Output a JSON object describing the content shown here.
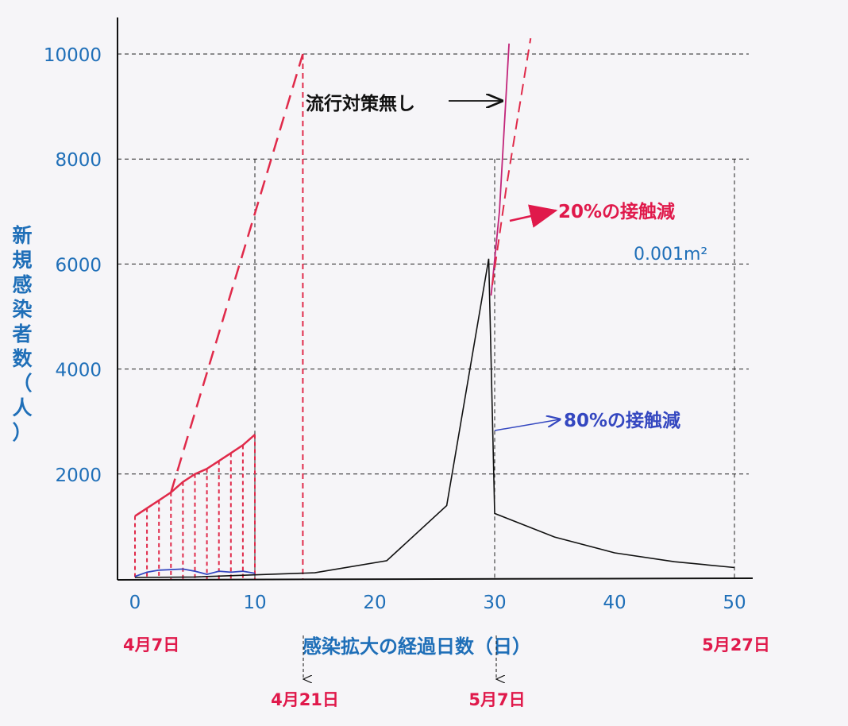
{
  "colors": {
    "blue_text": "#1f6fb8",
    "red_text": "#e0194b",
    "series_black": "#111111",
    "series_magenta": "#c2257a",
    "series_red": "#e02a4a",
    "series_blue": "#3447c0",
    "grid": "#222222",
    "background": "#f6f5f8"
  },
  "chart_data": {
    "type": "line",
    "title": "",
    "xlabel": "感染拡大の経過日数（日）",
    "ylabel": "新規感染者数（人）",
    "xlim": [
      0,
      52
    ],
    "ylim": [
      0,
      10000
    ],
    "grid": true,
    "x_ticks": [
      "0",
      "10",
      "20",
      "30",
      "40",
      "50"
    ],
    "y_ticks": [
      "2000",
      "4000",
      "6000",
      "8000",
      "10000"
    ],
    "date_labels": [
      {
        "day": 0,
        "label": "4月7日"
      },
      {
        "day": 14,
        "label": "4月21日"
      },
      {
        "day": 30,
        "label": "5月7日"
      },
      {
        "day": 50,
        "label": "5月27日"
      }
    ],
    "series": [
      {
        "style": "solid",
        "points": [
          [
            0,
            30
          ],
          [
            5,
            40
          ],
          [
            10,
            80
          ],
          [
            15,
            120
          ],
          [
            21,
            350
          ],
          [
            26,
            1400
          ],
          [
            29.5,
            6100
          ],
          [
            30,
            1250
          ],
          [
            35,
            800
          ],
          [
            40,
            500
          ],
          [
            45,
            330
          ],
          [
            50,
            220
          ]
        ]
      },
      {
        "style": "solid",
        "points": [
          [
            29.7,
            5400
          ],
          [
            30.4,
            7000
          ],
          [
            31.2,
            10200
          ]
        ]
      },
      {
        "style": "dashed",
        "points": [
          [
            29.8,
            5600
          ],
          [
            31,
            7500
          ],
          [
            33,
            10300
          ]
        ]
      },
      {
        "style": "dashed",
        "points": [
          [
            3,
            1650
          ],
          [
            14,
            10000
          ]
        ]
      },
      {
        "style": "solid",
        "points": [
          [
            0,
            1200
          ],
          [
            1,
            1350
          ],
          [
            2,
            1500
          ],
          [
            3,
            1650
          ],
          [
            4,
            1850
          ],
          [
            5,
            2000
          ],
          [
            6,
            2100
          ],
          [
            7,
            2250
          ],
          [
            8,
            2400
          ],
          [
            9,
            2550
          ],
          [
            10,
            2750
          ]
        ]
      },
      {
        "style": "solid",
        "points": [
          [
            0,
            50
          ],
          [
            1,
            130
          ],
          [
            2,
            170
          ],
          [
            3,
            180
          ],
          [
            4,
            190
          ],
          [
            5,
            150
          ],
          [
            6,
            90
          ],
          [
            7,
            150
          ],
          [
            8,
            130
          ],
          [
            9,
            150
          ],
          [
            10,
            110
          ]
        ]
      }
    ],
    "annotations": [
      {
        "text": "流行対策無し",
        "color": "black"
      },
      {
        "text": "20%の接触減",
        "color": "red"
      },
      {
        "text": "80%の接触減",
        "color": "blue"
      },
      {
        "text": "0.001m²",
        "color": "blue"
      }
    ]
  }
}
